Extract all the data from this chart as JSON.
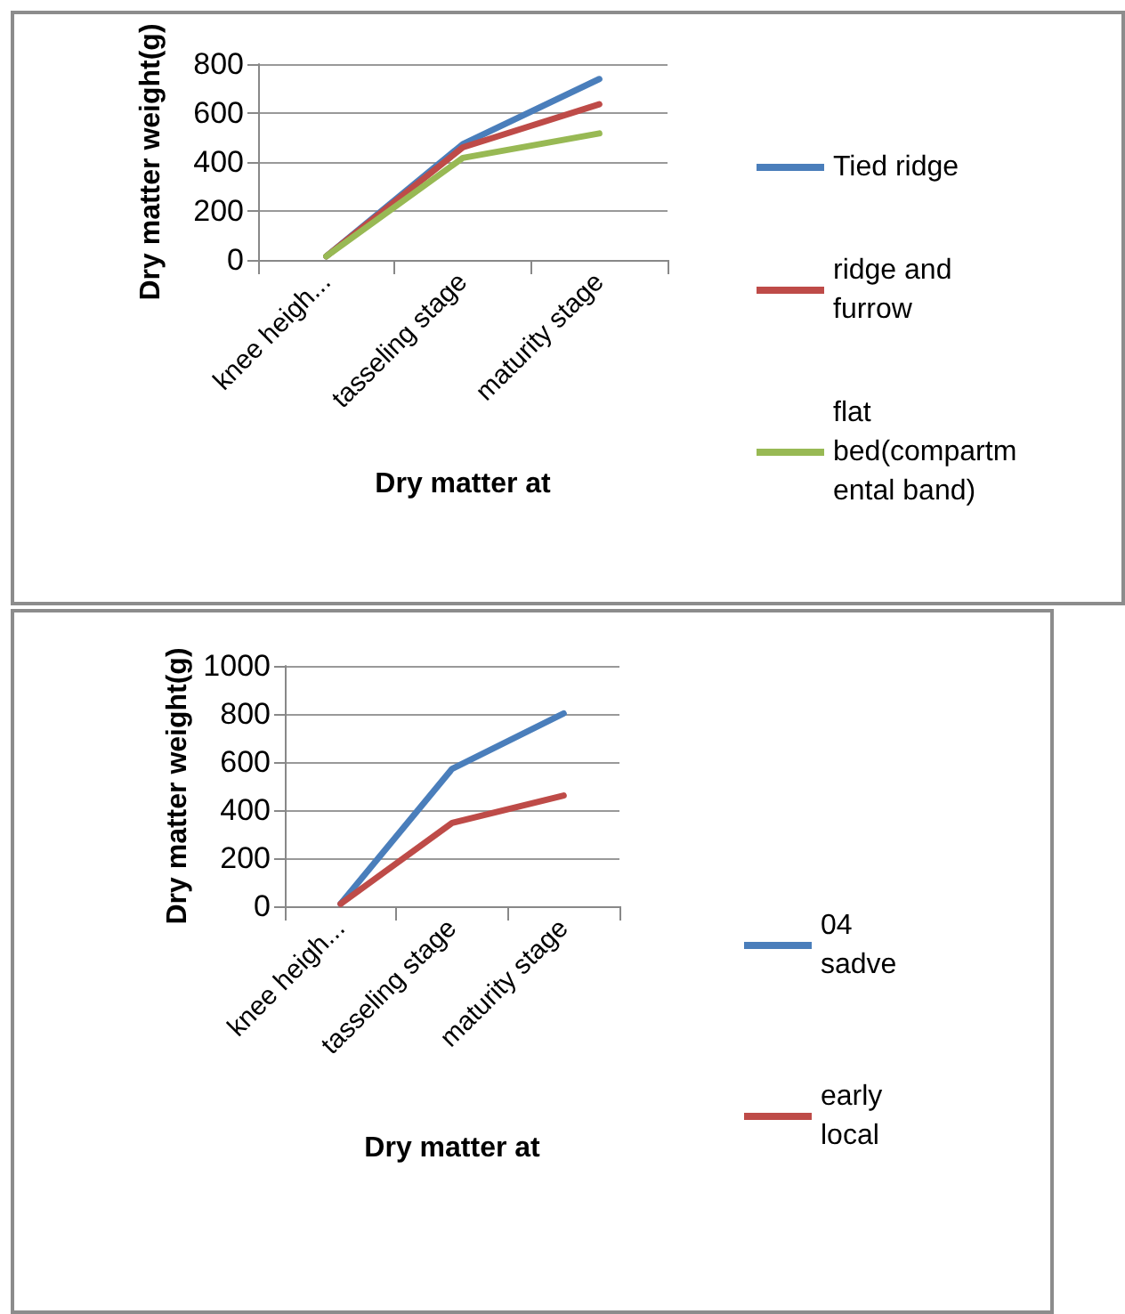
{
  "chart_data": [
    {
      "type": "line",
      "xlabel": "Dry matter at",
      "ylabel": "Dry matter weight(g)",
      "categories": [
        "knee heigh...",
        "tasseling stage",
        "maturity stage"
      ],
      "series": [
        {
          "name": "Tied ridge",
          "color": "#4a7ebb",
          "values": [
            15,
            473,
            739
          ]
        },
        {
          "name": "ridge and furrow",
          "color": "#be4b48",
          "values": [
            15,
            460,
            636
          ]
        },
        {
          "name": "flat bed(compartmental band)",
          "color": "#98b954",
          "values": [
            15,
            417,
            517
          ]
        }
      ],
      "ylim": [
        0,
        800
      ],
      "yticks": [
        0,
        200,
        400,
        600,
        800
      ],
      "grid": "y",
      "legend": "right",
      "marker": "none",
      "line_style": "solid"
    },
    {
      "type": "line",
      "xlabel": "Dry matter at",
      "ylabel": "Dry matter weight(g)",
      "categories": [
        "knee heigh...",
        "tasseling stage",
        "maturity stage"
      ],
      "series": [
        {
          "name": "04 sadve",
          "color": "#4a7ebb",
          "values": [
            10,
            572,
            802
          ]
        },
        {
          "name": "early local",
          "color": "#be4b48",
          "values": [
            10,
            347,
            461
          ]
        }
      ],
      "ylim": [
        0,
        1000
      ],
      "yticks": [
        0,
        200,
        400,
        600,
        800,
        1000
      ],
      "grid": "y",
      "legend": "right",
      "marker": "none",
      "line_style": "solid"
    }
  ]
}
